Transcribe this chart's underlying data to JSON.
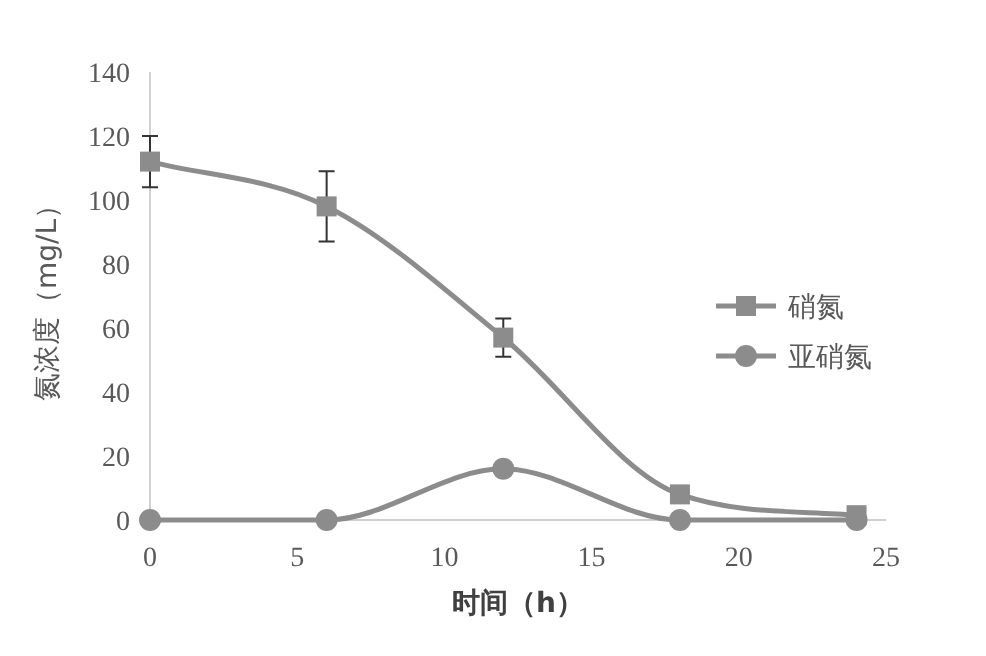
{
  "chart_data": {
    "type": "line",
    "xlabel": "时间（h）",
    "ylabel": "氮浓度（mg/L）",
    "x": [
      0,
      6,
      12,
      18,
      24
    ],
    "xlim": [
      0,
      25
    ],
    "xticks": [
      0,
      5,
      10,
      15,
      20,
      25
    ],
    "ylim": [
      0,
      140
    ],
    "yticks": [
      0,
      20,
      40,
      60,
      80,
      100,
      120,
      140
    ],
    "grid": false,
    "legend": "right",
    "series": [
      {
        "name": "硝氮",
        "color": "#8c8c8c",
        "marker": "square",
        "values": [
          112,
          98,
          57,
          8,
          1.5
        ],
        "errors": [
          8,
          11,
          6,
          1,
          1
        ]
      },
      {
        "name": "亚硝氮",
        "color": "#8c8c8c",
        "marker": "circle",
        "values": [
          0,
          0,
          16,
          0,
          0
        ],
        "errors": [
          null,
          null,
          2,
          null,
          null
        ]
      }
    ]
  }
}
